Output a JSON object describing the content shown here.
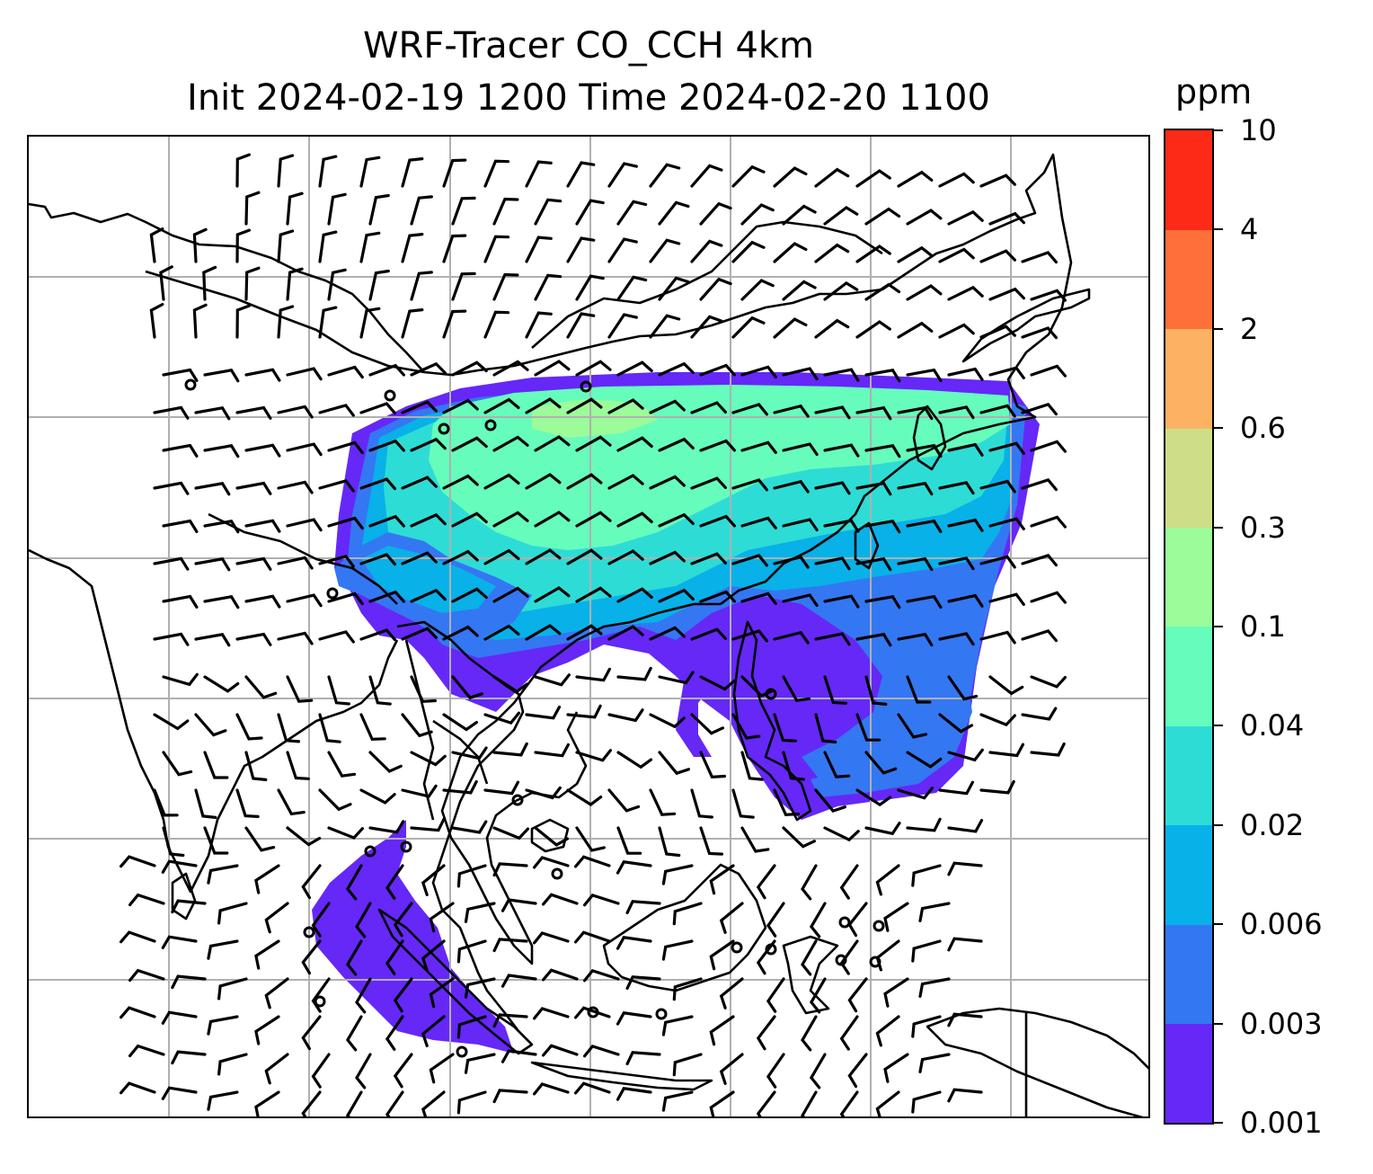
{
  "title": {
    "line1": "WRF-Tracer CO_CCH 4km",
    "line2": "Init 2024-02-19 1200 Time 2024-02-20 1100"
  },
  "colorbar": {
    "unit": "ppm",
    "tick_labels": [
      "0.001",
      "0.003",
      "0.006",
      "0.02",
      "0.04",
      "0.1",
      "0.3",
      "0.6",
      "2",
      "4",
      "10"
    ],
    "colors": [
      "#6528f7",
      "#3477f2",
      "#08b1e8",
      "#2edcd6",
      "#66fcbc",
      "#9bfc99",
      "#cede86",
      "#fdb163",
      "#fe6f3a",
      "#fe2a18"
    ]
  },
  "map": {
    "gridlines": true,
    "layers": [
      "tracer-concentration",
      "coastlines",
      "wind-barbs"
    ]
  }
}
